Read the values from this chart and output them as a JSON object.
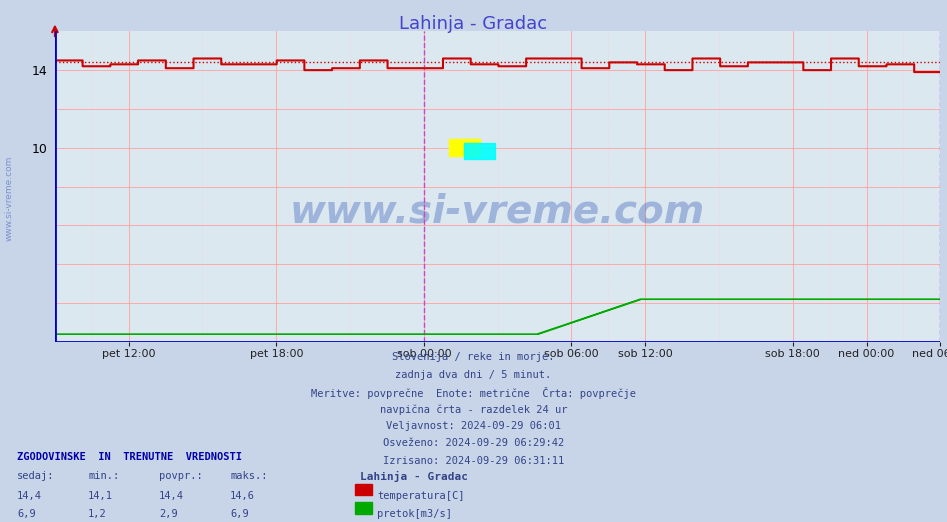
{
  "title": "Lahinja - Gradac",
  "title_color": "#4444cc",
  "background_color": "#c8d4e8",
  "plot_bg_color": "#dce8f0",
  "x_labels": [
    "pet 12:00",
    "pet 18:00",
    "sob 00:00",
    "sob 06:00",
    "sob 12:00",
    "sob 18:00",
    "ned 00:00",
    "ned 06:00"
  ],
  "x_ticks_norm": [
    0.0833,
    0.25,
    0.4167,
    0.5833,
    0.6667,
    0.8333,
    0.9167,
    1.0
  ],
  "ylim": [
    0,
    16
  ],
  "yticks": [
    2,
    4,
    6,
    8,
    10,
    12,
    14
  ],
  "temp_color": "#cc0000",
  "flow_color": "#00aa00",
  "avg_line_color": "#cc0000",
  "vline_color_pink": "#ffaaaa",
  "vline_color_purple": "#cc66cc",
  "watermark": "www.si-vreme.com",
  "watermark_color": "#4466bb",
  "footer_lines": [
    "Slovenija / reke in morje.",
    "zadnja dva dni / 5 minut.",
    "Meritve: povprečne  Enote: metrične  Črta: povprečje",
    "navpična črta - razdelek 24 ur",
    "Veljavnost: 2024-09-29 06:01",
    "Osveženo: 2024-09-29 06:29:42",
    "Izrisano: 2024-09-29 06:31:11"
  ],
  "stats_header": "ZGODOVINSKE  IN  TRENUTNE  VREDNOSTI",
  "stats_cols": [
    "sedaj:",
    "min.:",
    "povpr.:",
    "maks.:"
  ],
  "stats_temp": [
    "14,4",
    "14,1",
    "14,4",
    "14,6"
  ],
  "stats_flow": [
    "6,9",
    "1,2",
    "2,9",
    "6,9"
  ],
  "legend_title": "Lahinja - Gradac",
  "legend_temp_label": "temperatura[C]",
  "legend_flow_label": "pretok[m3/s]",
  "n_points": 576,
  "avg_temp": 14.4,
  "flow_max_display": 2.2,
  "flow_base_display": 0.4,
  "midnight_vline_x": 0.4167,
  "sob06_vline_x": 0.5,
  "right_vline_x": 1.0
}
